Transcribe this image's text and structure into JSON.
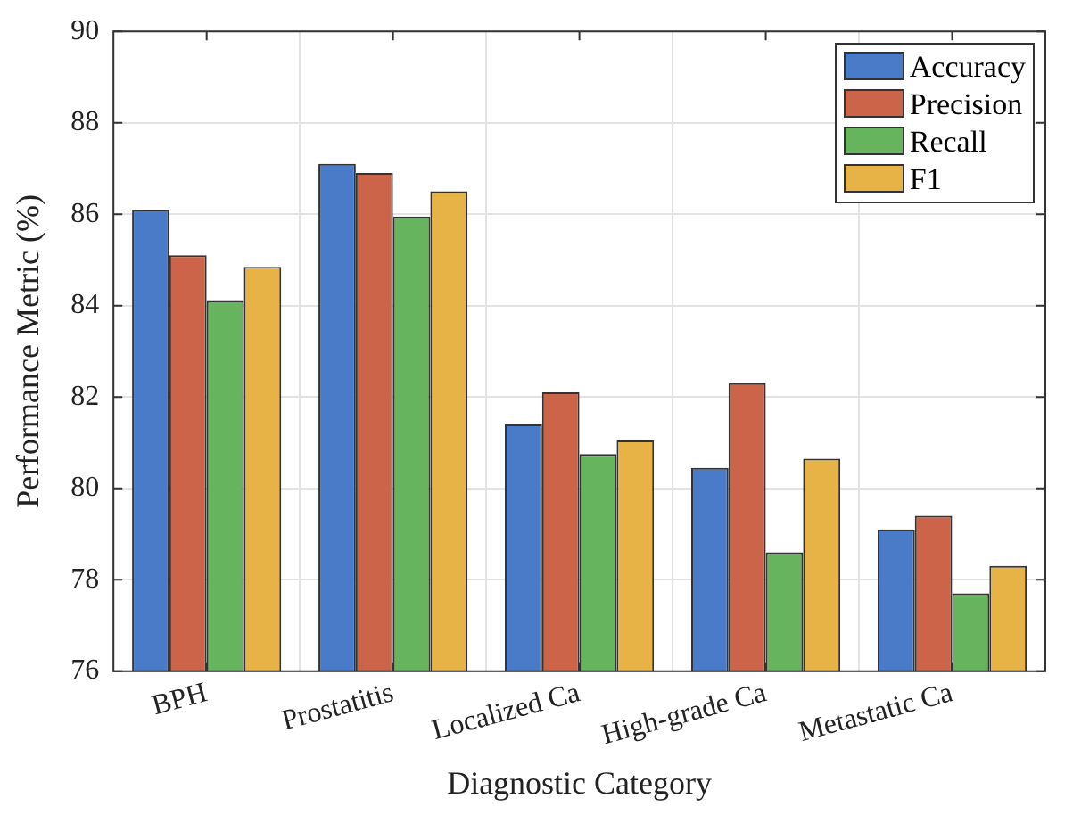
{
  "chart_data": {
    "type": "bar",
    "xlabel": "Diagnostic Category",
    "ylabel": "Performance Metric (%)",
    "categories": [
      "BPH",
      "Prostatitis",
      "Localized Ca",
      "High-grade Ca",
      "Metastatic Ca"
    ],
    "series": [
      {
        "name": "Accuracy",
        "color": "#4a7bc9",
        "values": [
          86.1,
          87.1,
          81.4,
          80.45,
          79.1
        ]
      },
      {
        "name": "Precision",
        "color": "#cc6449",
        "values": [
          85.1,
          86.9,
          82.1,
          82.3,
          79.4
        ]
      },
      {
        "name": "Recall",
        "color": "#66b45e",
        "values": [
          84.1,
          85.95,
          80.75,
          78.6,
          77.7
        ]
      },
      {
        "name": "F1",
        "color": "#e8b346",
        "values": [
          84.85,
          86.5,
          81.05,
          80.65,
          78.3
        ]
      }
    ],
    "ylim": [
      76,
      90
    ],
    "yticks": [
      76,
      78,
      80,
      82,
      84,
      86,
      88,
      90
    ],
    "grid": true,
    "legend": "top right"
  }
}
